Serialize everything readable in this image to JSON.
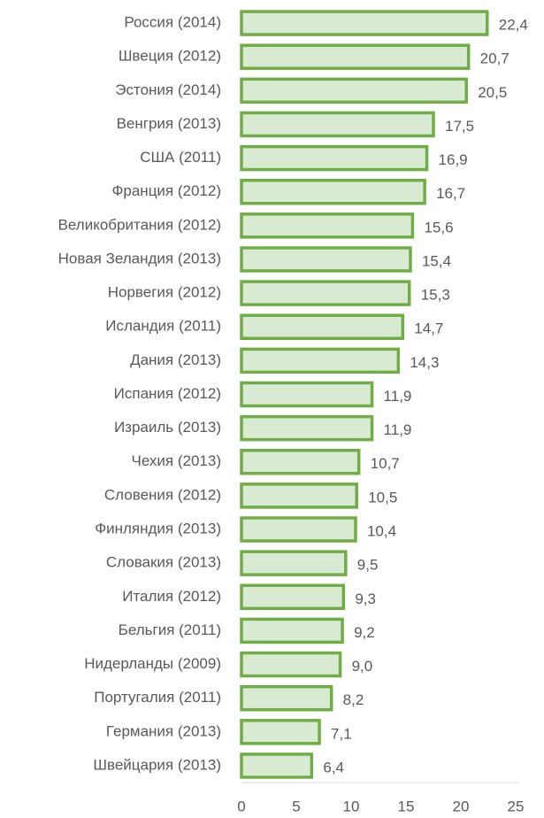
{
  "chart_data": {
    "type": "bar",
    "orientation": "horizontal",
    "categories": [
      "Россия (2014)",
      "Швеция (2012)",
      "Эстония (2014)",
      "Венгрия (2013)",
      "США (2011)",
      "Франция (2012)",
      "Великобритания (2012)",
      "Новая Зеландия (2013)",
      "Норвегия (2012)",
      "Исландия (2011)",
      "Дания (2013)",
      "Испания (2012)",
      "Израиль (2013)",
      "Чехия (2013)",
      "Словения (2012)",
      "Финляндия (2013)",
      "Словакия (2013)",
      "Италия (2012)",
      "Бельгия (2011)",
      "Нидерланды (2009)",
      "Португалия (2011)",
      "Германия (2013)",
      "Швейцария (2013)"
    ],
    "values": [
      22.4,
      20.7,
      20.5,
      17.5,
      16.9,
      16.7,
      15.6,
      15.4,
      15.3,
      14.7,
      14.3,
      11.9,
      11.9,
      10.7,
      10.5,
      10.4,
      9.5,
      9.3,
      9.2,
      9.0,
      8.2,
      7.1,
      6.4
    ],
    "value_labels": [
      "22,4",
      "20,7",
      "20,5",
      "17,5",
      "16,9",
      "16,7",
      "15,6",
      "15,4",
      "15,3",
      "14,7",
      "14,3",
      "11,9",
      "11,9",
      "10,7",
      "10,5",
      "10,4",
      "9,5",
      "9,3",
      "9,2",
      "9,0",
      "8,2",
      "7,1",
      "6,4"
    ],
    "color": "#70ad47",
    "fill": "#d9ead3",
    "xlim": [
      0,
      25
    ],
    "xticks": [
      0,
      5,
      10,
      15,
      20,
      25
    ]
  }
}
